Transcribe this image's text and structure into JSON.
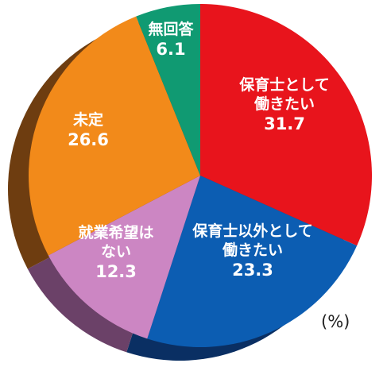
{
  "chart_data": {
    "type": "pie",
    "unit": "(%)",
    "start_angle_deg": 0,
    "direction": "clockwise",
    "slices": [
      {
        "label_lines": [
          "保育士として",
          "働きたい"
        ],
        "value": 31.7,
        "value_text": "31.7",
        "color": "#e8141c",
        "shadow": "#8a0d12"
      },
      {
        "label_lines": [
          "保育士以外として",
          "働きたい"
        ],
        "value": 23.3,
        "value_text": "23.3",
        "color": "#0c5db2",
        "shadow": "#0a2f63"
      },
      {
        "label_lines": [
          "就業希望は",
          "ない"
        ],
        "value": 12.3,
        "value_text": "12.3",
        "color": "#cc86c3",
        "shadow": "#6b4168"
      },
      {
        "label_lines": [
          "未定"
        ],
        "value": 26.6,
        "value_text": "26.6",
        "color": "#f28a1a",
        "shadow": "#6e3d10"
      },
      {
        "label_lines": [
          "無回答"
        ],
        "value": 6.1,
        "value_text": "6.1",
        "color": "#109a72",
        "shadow": "#0a4f3b"
      }
    ]
  }
}
